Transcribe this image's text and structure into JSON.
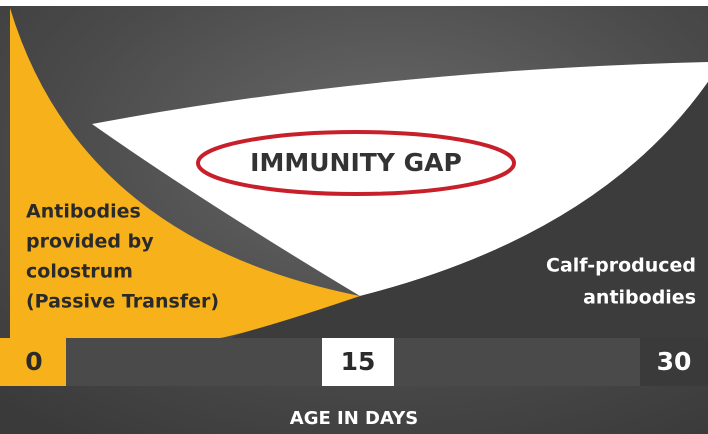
{
  "diagram": {
    "title": "IMMUNITY GAP",
    "left_label": [
      "Antibodies",
      "provided by",
      "colostrum",
      "(Passive Transfer)"
    ],
    "right_label": [
      "Calf-produced",
      "antibodies"
    ],
    "axis_ticks": [
      "0",
      "15",
      "30"
    ],
    "axis_title": "AGE IN DAYS"
  }
}
